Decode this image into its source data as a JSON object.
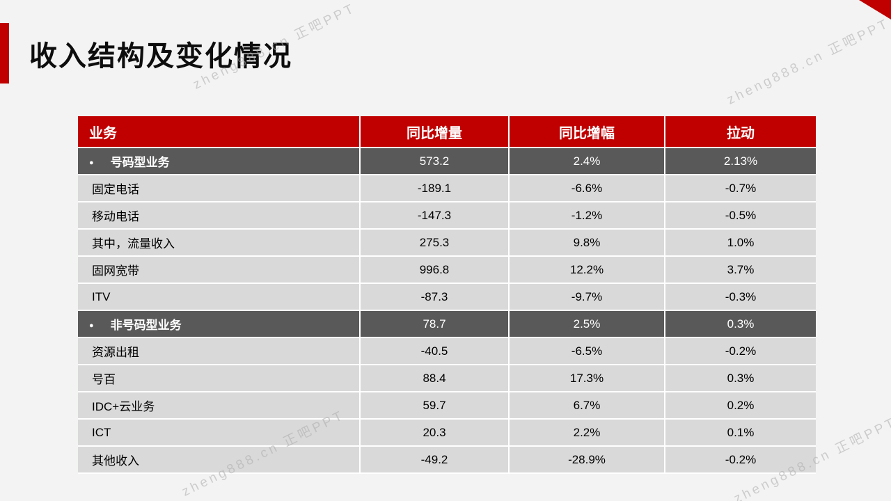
{
  "slide": {
    "title": "收入结构及变化情况",
    "accent_color": "#c00000",
    "background_color": "#f2f3f2"
  },
  "watermark": {
    "text": "zheng888.cn 正吧PPT",
    "color": "#adadad"
  },
  "table": {
    "header_bg": "#c00000",
    "group_row_bg": "#595959",
    "data_row_bg": "#d9d9d9",
    "headers": [
      "业务",
      "同比增量",
      "同比增幅",
      "拉动"
    ],
    "rows": [
      {
        "type": "group",
        "business": "号码型业务",
        "yoy_increment": "573.2",
        "yoy_growth": "2.4%",
        "pull": "2.13%"
      },
      {
        "type": "data",
        "business": "固定电话",
        "yoy_increment": "-189.1",
        "yoy_growth": "-6.6%",
        "pull": "-0.7%"
      },
      {
        "type": "data",
        "business": "移动电话",
        "yoy_increment": "-147.3",
        "yoy_growth": "-1.2%",
        "pull": "-0.5%"
      },
      {
        "type": "data",
        "business": "其中，流量收入",
        "yoy_increment": "275.3",
        "yoy_growth": "9.8%",
        "pull": "1.0%"
      },
      {
        "type": "data",
        "business": "固网宽带",
        "yoy_increment": "996.8",
        "yoy_growth": "12.2%",
        "pull": "3.7%"
      },
      {
        "type": "data",
        "business": "ITV",
        "yoy_increment": "-87.3",
        "yoy_growth": "-9.7%",
        "pull": "-0.3%"
      },
      {
        "type": "group",
        "business": "非号码型业务",
        "yoy_increment": "78.7",
        "yoy_growth": "2.5%",
        "pull": "0.3%"
      },
      {
        "type": "data",
        "business": "资源出租",
        "yoy_increment": "-40.5",
        "yoy_growth": "-6.5%",
        "pull": "-0.2%"
      },
      {
        "type": "data",
        "business": "号百",
        "yoy_increment": "88.4",
        "yoy_growth": "17.3%",
        "pull": "0.3%"
      },
      {
        "type": "data",
        "business": "IDC+云业务",
        "yoy_increment": "59.7",
        "yoy_growth": "6.7%",
        "pull": "0.2%"
      },
      {
        "type": "data",
        "business": "ICT",
        "yoy_increment": "20.3",
        "yoy_growth": "2.2%",
        "pull": "0.1%"
      },
      {
        "type": "data",
        "business": "其他收入",
        "yoy_increment": "-49.2",
        "yoy_growth": "-28.9%",
        "pull": "-0.2%"
      }
    ]
  },
  "chart_data": {
    "type": "table",
    "title": "收入结构及变化情况",
    "columns": [
      "业务",
      "同比增量",
      "同比增幅",
      "拉动"
    ],
    "rows": [
      [
        "号码型业务",
        573.2,
        "2.4%",
        "2.13%"
      ],
      [
        "固定电话",
        -189.1,
        "-6.6%",
        "-0.7%"
      ],
      [
        "移动电话",
        -147.3,
        "-1.2%",
        "-0.5%"
      ],
      [
        "其中，流量收入",
        275.3,
        "9.8%",
        "1.0%"
      ],
      [
        "固网宽带",
        996.8,
        "12.2%",
        "3.7%"
      ],
      [
        "ITV",
        -87.3,
        "-9.7%",
        "-0.3%"
      ],
      [
        "非号码型业务",
        78.7,
        "2.5%",
        "0.3%"
      ],
      [
        "资源出租",
        -40.5,
        "-6.5%",
        "-0.2%"
      ],
      [
        "号百",
        88.4,
        "17.3%",
        "0.3%"
      ],
      [
        "IDC+云业务",
        59.7,
        "6.7%",
        "0.2%"
      ],
      [
        "ICT",
        20.3,
        "2.2%",
        "0.1%"
      ],
      [
        "其他收入",
        -49.2,
        "-28.9%",
        "-0.2%"
      ]
    ]
  }
}
